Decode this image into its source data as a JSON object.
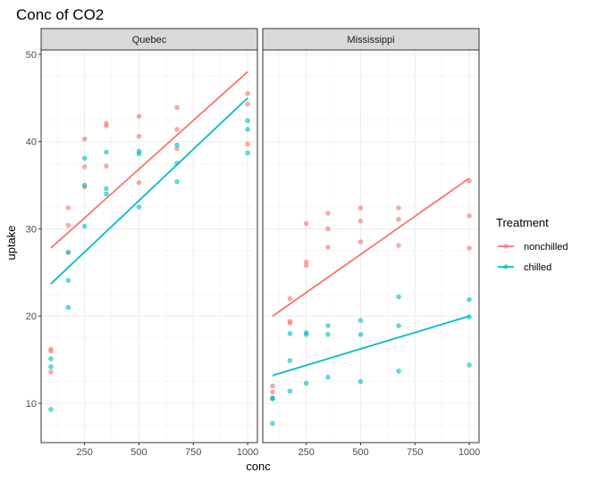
{
  "chart_data": {
    "type": "scatter",
    "title": "Conc of CO2",
    "xlabel": "conc",
    "ylabel": "uptake",
    "xlim": [
      50,
      1045
    ],
    "ylim": [
      5.5,
      50.5
    ],
    "xticks": [
      250,
      500,
      750,
      1000
    ],
    "yticks": [
      10,
      20,
      30,
      40,
      50
    ],
    "grid": true,
    "legend": {
      "title": "Treatment",
      "position": "right",
      "entries": [
        {
          "name": "nonchilled",
          "color": "#F8766D"
        },
        {
          "name": "chilled",
          "color": "#00BFC4"
        }
      ]
    },
    "panels": [
      {
        "name": "Quebec",
        "series": [
          {
            "name": "nonchilled",
            "color": "#F8766D",
            "points": [
              [
                95,
                16.0
              ],
              [
                95,
                13.6
              ],
              [
                95,
                16.2
              ],
              [
                175,
                30.4
              ],
              [
                175,
                27.3
              ],
              [
                175,
                32.4
              ],
              [
                250,
                34.8
              ],
              [
                250,
                37.1
              ],
              [
                250,
                40.3
              ],
              [
                350,
                37.2
              ],
              [
                350,
                41.8
              ],
              [
                350,
                42.1
              ],
              [
                500,
                35.3
              ],
              [
                500,
                40.6
              ],
              [
                500,
                42.9
              ],
              [
                675,
                39.2
              ],
              [
                675,
                41.4
              ],
              [
                675,
                43.9
              ],
              [
                1000,
                39.7
              ],
              [
                1000,
                44.3
              ],
              [
                1000,
                45.5
              ]
            ],
            "trend": [
              [
                95,
                27.8
              ],
              [
                1000,
                48.0
              ]
            ]
          },
          {
            "name": "chilled",
            "color": "#00BFC4",
            "points": [
              [
                95,
                14.2
              ],
              [
                95,
                9.3
              ],
              [
                95,
                15.1
              ],
              [
                175,
                24.1
              ],
              [
                175,
                27.3
              ],
              [
                175,
                21.0
              ],
              [
                250,
                30.3
              ],
              [
                250,
                35.0
              ],
              [
                250,
                38.1
              ],
              [
                350,
                34.6
              ],
              [
                350,
                38.8
              ],
              [
                350,
                34.0
              ],
              [
                500,
                32.5
              ],
              [
                500,
                38.6
              ],
              [
                500,
                38.9
              ],
              [
                675,
                35.4
              ],
              [
                675,
                37.5
              ],
              [
                675,
                39.6
              ],
              [
                1000,
                38.7
              ],
              [
                1000,
                42.4
              ],
              [
                1000,
                41.4
              ]
            ],
            "trend": [
              [
                95,
                23.7
              ],
              [
                1000,
                45.0
              ]
            ]
          }
        ]
      },
      {
        "name": "Mississippi",
        "series": [
          {
            "name": "nonchilled",
            "color": "#F8766D",
            "points": [
              [
                95,
                10.6
              ],
              [
                95,
                12.0
              ],
              [
                95,
                11.3
              ],
              [
                175,
                19.2
              ],
              [
                175,
                22.0
              ],
              [
                175,
                19.4
              ],
              [
                250,
                26.2
              ],
              [
                250,
                30.6
              ],
              [
                250,
                25.8
              ],
              [
                350,
                30.0
              ],
              [
                350,
                31.8
              ],
              [
                350,
                27.9
              ],
              [
                500,
                30.9
              ],
              [
                500,
                32.4
              ],
              [
                500,
                28.5
              ],
              [
                675,
                32.4
              ],
              [
                675,
                31.1
              ],
              [
                675,
                28.1
              ],
              [
                1000,
                35.5
              ],
              [
                1000,
                31.5
              ],
              [
                1000,
                27.8
              ]
            ],
            "trend": [
              [
                95,
                20.0
              ],
              [
                1000,
                35.8
              ]
            ]
          },
          {
            "name": "chilled",
            "color": "#00BFC4",
            "points": [
              [
                95,
                10.5
              ],
              [
                95,
                7.7
              ],
              [
                95,
                10.6
              ],
              [
                175,
                14.9
              ],
              [
                175,
                11.4
              ],
              [
                175,
                18.0
              ],
              [
                250,
                18.1
              ],
              [
                250,
                12.3
              ],
              [
                250,
                17.9
              ],
              [
                350,
                18.9
              ],
              [
                350,
                13.0
              ],
              [
                350,
                17.9
              ],
              [
                500,
                19.5
              ],
              [
                500,
                12.5
              ],
              [
                500,
                17.9
              ],
              [
                675,
                22.2
              ],
              [
                675,
                13.7
              ],
              [
                675,
                18.9
              ],
              [
                1000,
                21.9
              ],
              [
                1000,
                14.4
              ],
              [
                1000,
                19.9
              ]
            ],
            "trend": [
              [
                95,
                13.2
              ],
              [
                1000,
                20.0
              ]
            ]
          }
        ]
      }
    ]
  }
}
